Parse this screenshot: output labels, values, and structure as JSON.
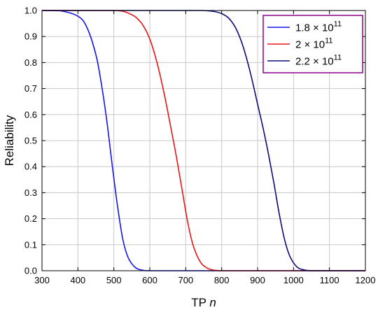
{
  "chart_data": {
    "type": "line",
    "title": "",
    "xlabel_main": "TP ",
    "xlabel_italic": "n",
    "ylabel": "Reliability",
    "xlim": [
      300,
      1200
    ],
    "ylim": [
      0.0,
      1.0
    ],
    "xticks": [
      "300",
      "400",
      "500",
      "600",
      "700",
      "800",
      "900",
      "1000",
      "1100",
      "1200"
    ],
    "yticks": [
      "0.0",
      "0.1",
      "0.2",
      "0.3",
      "0.4",
      "0.5",
      "0.6",
      "0.7",
      "0.8",
      "0.9",
      "1.0"
    ],
    "grid": true,
    "legend_position": "top-right",
    "x": [
      300,
      350,
      400,
      425,
      450,
      465,
      480,
      495,
      510,
      525,
      540,
      560,
      580,
      600,
      620,
      640,
      660,
      675,
      690,
      705,
      720,
      740,
      760,
      780,
      800,
      820,
      840,
      860,
      880,
      900,
      915,
      930,
      945,
      960,
      975,
      990,
      1010,
      1030,
      1050,
      1070,
      1100,
      1150,
      1200
    ],
    "series": [
      {
        "legend_base": "1.8 × 10",
        "legend_exp": "11",
        "color": "#1515e8",
        "values": [
          1.0,
          0.999,
          0.978,
          0.935,
          0.83,
          0.72,
          0.58,
          0.41,
          0.25,
          0.12,
          0.05,
          0.012,
          0.002,
          0.0,
          0.0,
          0.0,
          0.0,
          0.0,
          0.0,
          0.0,
          0.0,
          0.0,
          0.0,
          0.0,
          0.0,
          0.0,
          0.0,
          0.0,
          0.0,
          0.0,
          0.0,
          0.0,
          0.0,
          0.0,
          0.0,
          0.0,
          0.0,
          0.0,
          0.0,
          0.0,
          0.0,
          0.0,
          0.0
        ]
      },
      {
        "legend_base": "2 × 10",
        "legend_exp": "11",
        "color": "#e81515",
        "values": [
          1.0,
          1.0,
          1.0,
          1.0,
          1.0,
          1.0,
          1.0,
          1.0,
          0.999,
          0.997,
          0.99,
          0.975,
          0.945,
          0.89,
          0.8,
          0.68,
          0.54,
          0.43,
          0.31,
          0.19,
          0.1,
          0.035,
          0.01,
          0.002,
          0.0,
          0.0,
          0.0,
          0.0,
          0.0,
          0.0,
          0.0,
          0.0,
          0.0,
          0.0,
          0.0,
          0.0,
          0.0,
          0.0,
          0.0,
          0.0,
          0.0,
          0.0,
          0.0
        ]
      },
      {
        "legend_base": "2.2 × 10",
        "legend_exp": "11",
        "color": "#0a0a7a",
        "values": [
          1.0,
          1.0,
          1.0,
          1.0,
          1.0,
          1.0,
          1.0,
          1.0,
          1.0,
          1.0,
          1.0,
          1.0,
          1.0,
          1.0,
          1.0,
          1.0,
          1.0,
          1.0,
          1.0,
          1.0,
          1.0,
          1.0,
          0.999,
          0.996,
          0.988,
          0.97,
          0.93,
          0.86,
          0.76,
          0.64,
          0.55,
          0.45,
          0.34,
          0.22,
          0.12,
          0.055,
          0.014,
          0.003,
          0.0,
          0.0,
          0.0,
          0.0,
          0.0
        ]
      }
    ],
    "legend_border_color": "#8b008b"
  }
}
